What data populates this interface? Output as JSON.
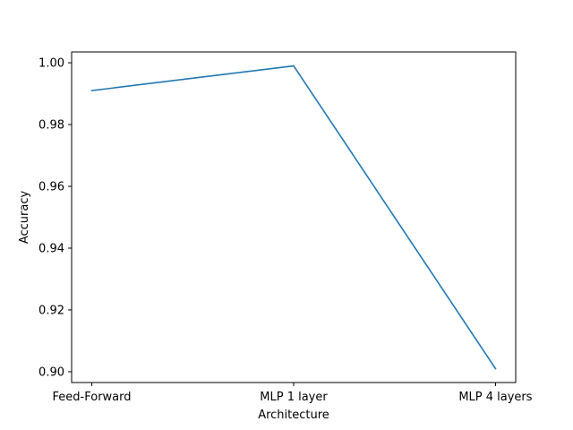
{
  "chart_data": {
    "type": "line",
    "title": "",
    "xlabel": "Architecture",
    "ylabel": "Accuracy",
    "categories": [
      "Feed-Forward",
      "MLP 1 layer",
      "MLP 4 layers"
    ],
    "series": [
      {
        "values": [
          0.991,
          0.999,
          0.901
        ]
      }
    ],
    "ylim": [
      0.8965,
      1.0035
    ],
    "yticks": [
      0.9,
      0.92,
      0.94,
      0.96,
      0.98,
      1.0
    ],
    "ytick_labels": [
      "0.90",
      "0.92",
      "0.94",
      "0.96",
      "0.98",
      "1.00"
    ],
    "grid": false,
    "legend": "none",
    "colors": {
      "line": "#1f77b4",
      "axes": "#000000",
      "background": "#ffffff"
    }
  }
}
